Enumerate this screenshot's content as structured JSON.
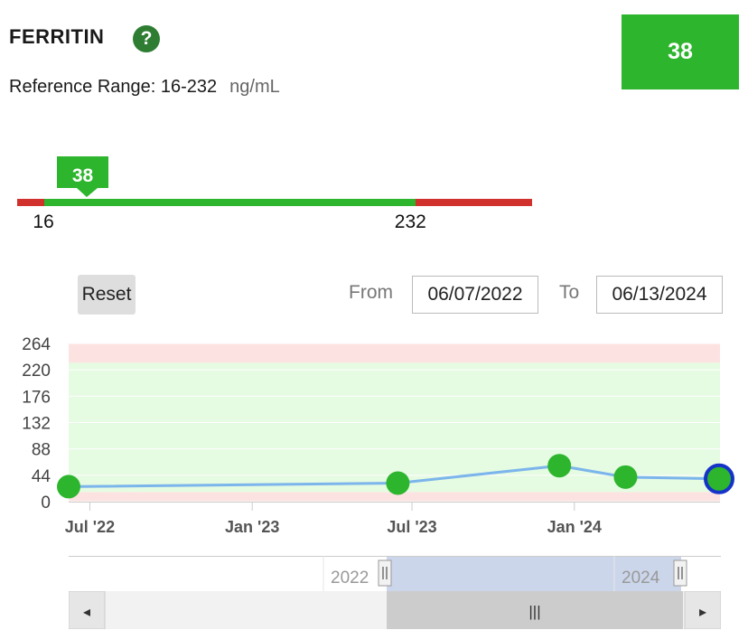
{
  "test": {
    "name": "FERRITIN",
    "help_icon": "?",
    "reference_label": "Reference Range: 16-232",
    "unit": "ng/mL",
    "current_value": "38"
  },
  "range_bar": {
    "low": "16",
    "high": "232",
    "value": "38",
    "low_num": 16,
    "high_num": 232,
    "value_num": 38,
    "scale_min": 0,
    "scale_max": 300,
    "colors": {
      "normal": "#2db52d",
      "abnormal": "#d0312d"
    }
  },
  "controls": {
    "reset_label": "Reset",
    "from_label": "From",
    "from_value": "06/07/2022",
    "to_label": "To",
    "to_value": "06/13/2024"
  },
  "navigator": {
    "labels": [
      "2022",
      "2024"
    ],
    "scroll_grip": "|||",
    "scroll_left": "◂",
    "scroll_right": "▸"
  },
  "chart_data": {
    "type": "line",
    "x_start": "2022-06-07",
    "x_end": "2024-06-13",
    "y_ticks": [
      "264",
      "220",
      "176",
      "132",
      "88",
      "44",
      "0"
    ],
    "y_range": [
      0,
      264
    ],
    "x_ticks": [
      {
        "label": "Jul '22",
        "date": "2022-07-01"
      },
      {
        "label": "Jan '23",
        "date": "2023-01-01"
      },
      {
        "label": "Jul '23",
        "date": "2023-07-01"
      },
      {
        "label": "Jan '24",
        "date": "2024-01-01"
      }
    ],
    "bands": [
      {
        "from": 0,
        "to": 16,
        "status": "abnormal",
        "color": "#fde2e2"
      },
      {
        "from": 16,
        "to": 232,
        "status": "normal",
        "color": "#e5fbe2"
      },
      {
        "from": 232,
        "to": 264,
        "status": "abnormal",
        "color": "#fde2e2"
      }
    ],
    "series": [
      {
        "line_color": "#7cb5ec",
        "point_color": "#2db52d",
        "points": [
          {
            "x": "2022-06-07",
            "y": 25
          },
          {
            "x": "2023-06-15",
            "y": 31
          },
          {
            "x": "2023-12-15",
            "y": 60
          },
          {
            "x": "2024-02-28",
            "y": 41
          },
          {
            "x": "2024-06-13",
            "y": 38,
            "selected": true
          }
        ]
      }
    ],
    "grid": true
  }
}
